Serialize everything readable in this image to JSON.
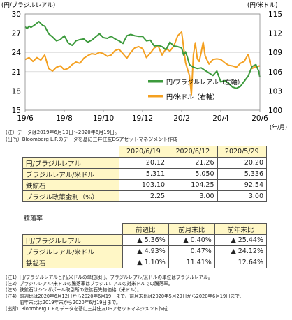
{
  "chart_data": {
    "type": "line",
    "y_left_label": "(円/ブラジルレアル)",
    "y_right_label": "(円/米ドル)",
    "x_unit": "(年/月)",
    "x_ticks": [
      "19/6",
      "19/8",
      "19/10",
      "19/12",
      "20/2",
      "20/4",
      "20/6"
    ],
    "y_left_ticks": [
      "15",
      "18",
      "21",
      "24",
      "27",
      "30"
    ],
    "y_right_ticks": [
      "100",
      "103",
      "106",
      "109",
      "112",
      "115"
    ],
    "y_left_range": [
      15,
      30
    ],
    "y_right_range": [
      100,
      115
    ],
    "legend_position": "center-right",
    "series": [
      {
        "name": "円/ブラジルレアル（左軸）",
        "axis": "left",
        "color": "#3c9a3c",
        "x": [
          0,
          0.1,
          0.2,
          0.3,
          0.5,
          0.7,
          0.9,
          1.0,
          1.2,
          1.4,
          1.6,
          1.8,
          2.0,
          2.2,
          2.4,
          2.6,
          2.8,
          3.0,
          3.2,
          3.4,
          3.6,
          3.8,
          4.0,
          4.2,
          4.4,
          4.6,
          4.8,
          5.0,
          5.2,
          5.4,
          5.6,
          5.8,
          6.0,
          6.2,
          6.4,
          6.6,
          6.8,
          7.0,
          7.2,
          7.4,
          7.6,
          7.8,
          8.0,
          8.1,
          8.2,
          8.3,
          8.4,
          8.6,
          8.8,
          9.0,
          9.2,
          9.4,
          9.6,
          9.8,
          10.0,
          10.2,
          10.4,
          10.6,
          10.8,
          11.0,
          11.2,
          11.4,
          11.6,
          11.8,
          11.95,
          12.0
        ],
        "values": [
          28.0,
          27.7,
          28.1,
          27.9,
          28.3,
          28.8,
          28.2,
          28.1,
          26.9,
          26.4,
          25.8,
          26.0,
          26.6,
          25.5,
          25.1,
          25.8,
          26.0,
          26.1,
          25.6,
          25.9,
          26.4,
          26.9,
          26.3,
          26.2,
          26.5,
          26.1,
          25.8,
          25.4,
          26.6,
          26.8,
          26.6,
          26.5,
          26.5,
          25.8,
          25.9,
          25.0,
          25.1,
          24.9,
          24.4,
          25.6,
          25.0,
          24.9,
          24.7,
          23.6,
          24.1,
          23.2,
          22.1,
          21.7,
          21.5,
          21.6,
          21.2,
          20.8,
          20.4,
          21.1,
          19.4,
          19.6,
          19.2,
          18.6,
          18.4,
          18.7,
          19.5,
          20.3,
          21.8,
          22.1,
          21.0,
          20.12
        ]
      },
      {
        "name": "円/米ドル（右軸）",
        "axis": "right",
        "color": "#f4a020",
        "x": [
          0,
          0.2,
          0.4,
          0.6,
          0.8,
          1.0,
          1.2,
          1.4,
          1.6,
          1.8,
          2.0,
          2.2,
          2.4,
          2.6,
          2.8,
          3.0,
          3.2,
          3.4,
          3.6,
          3.8,
          4.0,
          4.2,
          4.4,
          4.6,
          4.8,
          5.0,
          5.2,
          5.4,
          5.6,
          5.8,
          6.0,
          6.2,
          6.4,
          6.6,
          6.8,
          7.0,
          7.2,
          7.4,
          7.6,
          7.8,
          8.0,
          8.2,
          8.4,
          8.5,
          8.6,
          8.7,
          8.8,
          8.9,
          9.0,
          9.1,
          9.2,
          9.3,
          9.4,
          9.6,
          9.8,
          10.0,
          10.2,
          10.4,
          10.6,
          10.8,
          11.0,
          11.2,
          11.4,
          11.6,
          11.8,
          12.0
        ],
        "values": [
          107.9,
          108.2,
          107.6,
          108.2,
          107.8,
          108.6,
          106.5,
          106.1,
          106.7,
          106.9,
          106.3,
          106.5,
          107.1,
          107.5,
          107.3,
          108.1,
          108.5,
          108.8,
          108.7,
          109.0,
          108.8,
          108.4,
          108.6,
          109.3,
          109.5,
          108.8,
          108.1,
          109.0,
          109.7,
          109.9,
          109.6,
          108.2,
          108.9,
          109.7,
          110.0,
          108.6,
          109.6,
          109.2,
          110.0,
          111.6,
          112.2,
          107.4,
          105.4,
          102.4,
          108.6,
          110.5,
          108.0,
          107.6,
          109.0,
          110.6,
          108.5,
          107.8,
          107.2,
          107.9,
          108.0,
          107.9,
          107.4,
          107.0,
          106.9,
          106.7,
          107.3,
          107.6,
          108.7,
          106.5,
          106.8,
          106.9
        ]
      }
    ]
  },
  "notes_top": [
    "(注）データは2019年6月19日～2020年6月19日。",
    "(出所）Bloomberg L.P.のデータを基に三井住友DSアセットマネジメント作成"
  ],
  "table1": {
    "headers": [
      "2020/6/19",
      "2020/6/12",
      "2020/5/29"
    ],
    "rows": [
      {
        "label": "円/ブラジルレアル",
        "values": [
          "20.12",
          "21.26",
          "20.20"
        ]
      },
      {
        "label": "ブラジルレアル/米ドル",
        "values": [
          "5.311",
          "5.050",
          "5.336"
        ]
      },
      {
        "label": "鉄鉱石",
        "values": [
          "103.10",
          "104.25",
          "92.54"
        ]
      },
      {
        "label": "ブラジル政策金利（%）",
        "values": [
          "2.25",
          "3.00",
          "3.00"
        ]
      }
    ]
  },
  "section_label": "騰落率",
  "table2": {
    "headers": [
      "前週比",
      "前月末比",
      "前年末比"
    ],
    "rows": [
      {
        "label": "円/ブラジルレアル",
        "values": [
          "▲ 5.36%",
          "▲ 0.40%",
          "▲ 25.44%"
        ]
      },
      {
        "label": "ブラジルレアル/米ドル",
        "values": [
          "▲ 4.93%",
          "0.47%",
          "▲ 24.12%"
        ]
      },
      {
        "label": "鉄鉱石",
        "values": [
          "▲ 1.10%",
          "11.41%",
          "12.64%"
        ]
      }
    ]
  },
  "footnotes": [
    "(注1）円/ブラジルレアルと円/米ドルの単位は円、ブラジルレアル/米ドルの単位はブラジルレアル。",
    "(注2）ブラジルレアル/米ドルの騰落率はブラジルレアルの対米ドルでの騰落率。",
    "(注3）鉄鉱石はシンガポール取引所の鉄鉱石先物価格（米ドル）。",
    "(注4）前週比は2020年6月12日から2020年6月19日まで、前月末比は2020年5月29日から2020年6月19日まで、",
    "　　　前年末比は2019年末から2020年6月19日まで。",
    "(出所）Bloomberg L.P.のデータを基に三井住友DSアセットマネジメント作成"
  ]
}
